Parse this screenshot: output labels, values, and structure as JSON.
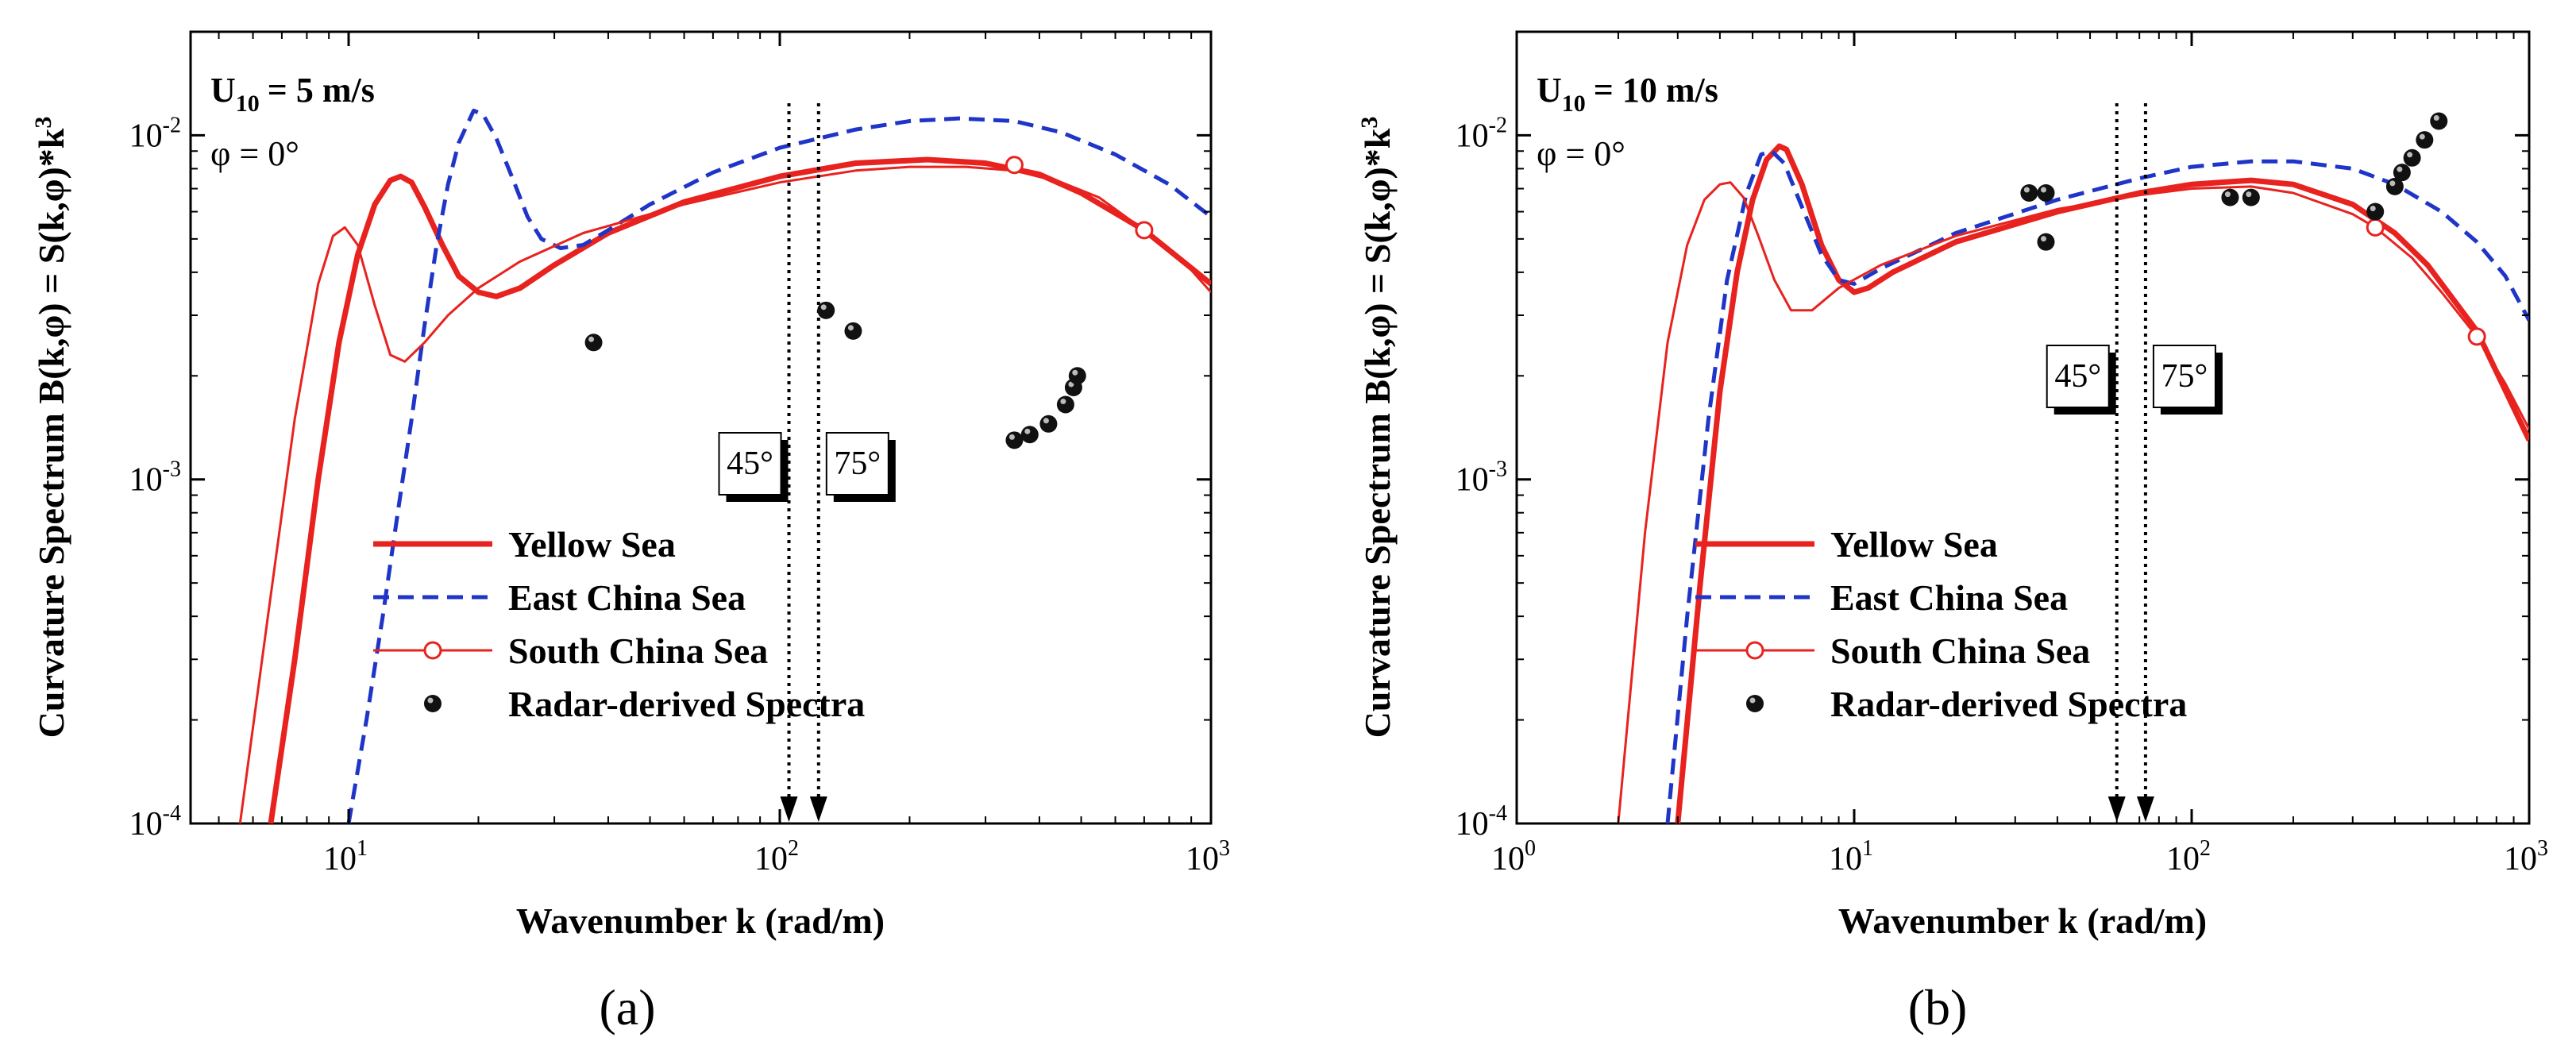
{
  "chart_data": [
    {
      "type": "line",
      "caption": "(a)",
      "annotation": {
        "wind_prefix": "U",
        "wind_sub": "10",
        "wind_value": "= 5 m/s",
        "phi": "φ = 0°"
      },
      "xlabel": "Wavenumber k (rad/m)",
      "ylabel": "Curvature Spectrum B(k,φ) = S(k,φ)*k",
      "ylabel_sup": "3",
      "x_scale": "log",
      "y_scale": "log",
      "xlim": [
        4.3,
        1000
      ],
      "ylim": [
        0.0001,
        0.02
      ],
      "x_ticks": [
        {
          "value": 10,
          "base": "10",
          "exp": "1"
        },
        {
          "value": 100,
          "base": "10",
          "exp": "2"
        },
        {
          "value": 1000,
          "base": "10",
          "exp": "3"
        }
      ],
      "y_ticks": [
        {
          "value": 0.0001,
          "base": "10",
          "exp": "-4"
        },
        {
          "value": 0.001,
          "base": "10",
          "exp": "-3"
        },
        {
          "value": 0.01,
          "base": "10",
          "exp": "-2"
        }
      ],
      "angle_markers": [
        {
          "label": "45°",
          "k": 105
        },
        {
          "label": "75°",
          "k": 123
        }
      ],
      "legend": [
        "Yellow Sea",
        "East China Sea",
        "South China Sea",
        "Radar-derived Spectra"
      ],
      "series": [
        {
          "name": "Yellow Sea",
          "style": "solid-thick",
          "color": "#e8221e",
          "x": [
            6.6,
            7.5,
            8.5,
            9.5,
            10.5,
            11.5,
            12.5,
            13.2,
            14,
            15,
            16.5,
            18,
            20,
            22,
            25,
            30,
            40,
            60,
            100,
            150,
            220,
            300,
            400,
            500,
            700,
            1000
          ],
          "y": [
            0.0001,
            0.0003,
            0.001,
            0.0025,
            0.0045,
            0.0063,
            0.0074,
            0.0076,
            0.0073,
            0.0062,
            0.0048,
            0.0039,
            0.0035,
            0.0034,
            0.0036,
            0.0042,
            0.0052,
            0.0064,
            0.0076,
            0.0083,
            0.0085,
            0.0083,
            0.0077,
            0.0068,
            0.0053,
            0.0037
          ]
        },
        {
          "name": "East China Sea",
          "style": "dashed",
          "color": "#1f35c8",
          "x": [
            10,
            11,
            12,
            13,
            14,
            15,
            16,
            17,
            18,
            19.5,
            20.5,
            22,
            24,
            26,
            28,
            31,
            35,
            40,
            50,
            70,
            100,
            150,
            200,
            260,
            350,
            450,
            600,
            800,
            1000
          ],
          "y": [
            0.0001,
            0.0002,
            0.0004,
            0.0008,
            0.0015,
            0.0028,
            0.0048,
            0.0072,
            0.0095,
            0.0118,
            0.0115,
            0.0098,
            0.0075,
            0.0058,
            0.005,
            0.0047,
            0.0048,
            0.0053,
            0.0063,
            0.0078,
            0.0092,
            0.0104,
            0.011,
            0.0112,
            0.011,
            0.0102,
            0.0088,
            0.0072,
            0.0058
          ]
        },
        {
          "name": "South China Sea",
          "style": "solid-thin-marker",
          "color": "#e8221e",
          "x": [
            5.6,
            6.5,
            7.5,
            8.5,
            9.2,
            9.8,
            10.5,
            11.5,
            12.5,
            13.5,
            15,
            17,
            20,
            25,
            35,
            60,
            100,
            150,
            200,
            270,
            350,
            450,
            550,
            700,
            850,
            1000
          ],
          "y": [
            0.0001,
            0.0004,
            0.0015,
            0.0037,
            0.0051,
            0.0054,
            0.0048,
            0.0032,
            0.0023,
            0.0022,
            0.0025,
            0.003,
            0.0036,
            0.0043,
            0.0052,
            0.0063,
            0.0073,
            0.0079,
            0.0081,
            0.0081,
            0.0079,
            0.0073,
            0.0066,
            0.0053,
            0.0044,
            0.0035
          ],
          "markers": [
            {
              "x": 350,
              "y": 0.0082
            },
            {
              "x": 700,
              "y": 0.0053
            }
          ]
        },
        {
          "name": "Radar-derived Spectra",
          "style": "points",
          "color": "#000000",
          "x": [
            37,
            128,
            148,
            350,
            380,
            420,
            460,
            480,
            490
          ],
          "y": [
            0.0025,
            0.0031,
            0.0027,
            0.0013,
            0.00135,
            0.00145,
            0.00165,
            0.00185,
            0.002
          ]
        }
      ]
    },
    {
      "type": "line",
      "caption": "(b)",
      "annotation": {
        "wind_prefix": "U",
        "wind_sub": "10",
        "wind_value": "= 10 m/s",
        "phi": "φ = 0°"
      },
      "xlabel": "Wavenumber k (rad/m)",
      "ylabel": "Curvature Spectrum B(k,φ) = S(k,φ)*k",
      "ylabel_sup": "3",
      "x_scale": "log",
      "y_scale": "log",
      "xlim": [
        1,
        1000
      ],
      "ylim": [
        0.0001,
        0.02
      ],
      "x_ticks": [
        {
          "value": 1,
          "base": "10",
          "exp": "0"
        },
        {
          "value": 10,
          "base": "10",
          "exp": "1"
        },
        {
          "value": 100,
          "base": "10",
          "exp": "2"
        },
        {
          "value": 1000,
          "base": "10",
          "exp": "3"
        }
      ],
      "y_ticks": [
        {
          "value": 0.0001,
          "base": "10",
          "exp": "-4"
        },
        {
          "value": 0.001,
          "base": "10",
          "exp": "-3"
        },
        {
          "value": 0.01,
          "base": "10",
          "exp": "-2"
        }
      ],
      "angle_markers": [
        {
          "label": "45°",
          "k": 60
        },
        {
          "label": "75°",
          "k": 73
        }
      ],
      "legend": [
        "Yellow Sea",
        "East China Sea",
        "South China Sea",
        "Radar-derived Spectra"
      ],
      "series": [
        {
          "name": "Yellow Sea",
          "style": "solid-thick",
          "color": "#e8221e",
          "x": [
            3,
            3.5,
            4,
            4.5,
            5,
            5.5,
            6,
            6.3,
            7,
            8,
            9,
            10,
            11,
            13,
            20,
            40,
            70,
            100,
            150,
            200,
            300,
            400,
            500,
            700,
            1000
          ],
          "y": [
            0.0001,
            0.0005,
            0.0018,
            0.004,
            0.0065,
            0.0085,
            0.0093,
            0.0091,
            0.0072,
            0.0048,
            0.0038,
            0.0035,
            0.0036,
            0.004,
            0.0049,
            0.006,
            0.0068,
            0.0072,
            0.0074,
            0.0072,
            0.0063,
            0.0052,
            0.0042,
            0.0027,
            0.0013
          ]
        },
        {
          "name": "East China Sea",
          "style": "dashed",
          "color": "#1f35c8",
          "x": [
            2.8,
            3.2,
            3.7,
            4.2,
            4.8,
            5.3,
            5.7,
            6.2,
            7,
            8,
            9,
            10,
            12,
            20,
            40,
            70,
            100,
            150,
            200,
            300,
            400,
            550,
            700,
            850,
            1000
          ],
          "y": [
            0.0001,
            0.0004,
            0.0015,
            0.0038,
            0.0068,
            0.0088,
            0.009,
            0.0083,
            0.0062,
            0.0045,
            0.0038,
            0.0037,
            0.0041,
            0.0052,
            0.0065,
            0.0075,
            0.0081,
            0.0084,
            0.0084,
            0.008,
            0.0072,
            0.006,
            0.0049,
            0.0039,
            0.0029
          ]
        },
        {
          "name": "South China Sea",
          "style": "solid-thin-marker",
          "color": "#e8221e",
          "x": [
            2,
            2.4,
            2.8,
            3.2,
            3.6,
            4,
            4.3,
            4.7,
            5.2,
            5.8,
            6.5,
            7.5,
            9,
            12,
            20,
            40,
            70,
            100,
            150,
            200,
            300,
            350,
            450,
            550,
            700,
            850,
            1000
          ],
          "y": [
            0.0001,
            0.0007,
            0.0025,
            0.0048,
            0.0065,
            0.0072,
            0.0073,
            0.0066,
            0.0051,
            0.0038,
            0.0031,
            0.0031,
            0.0036,
            0.0042,
            0.0051,
            0.0061,
            0.0067,
            0.007,
            0.0071,
            0.0068,
            0.0059,
            0.0054,
            0.0044,
            0.0035,
            0.0026,
            0.0019,
            0.0014
          ],
          "markers": [
            {
              "x": 350,
              "y": 0.0054
            },
            {
              "x": 700,
              "y": 0.0026
            }
          ]
        },
        {
          "name": "Radar-derived Spectra",
          "style": "points",
          "color": "#000000",
          "x": [
            33,
            37,
            37,
            130,
            150,
            350,
            400,
            420,
            450,
            490,
            540
          ],
          "y": [
            0.0068,
            0.0068,
            0.0049,
            0.0066,
            0.0066,
            0.006,
            0.0071,
            0.0078,
            0.0086,
            0.0097,
            0.011
          ]
        }
      ]
    }
  ]
}
